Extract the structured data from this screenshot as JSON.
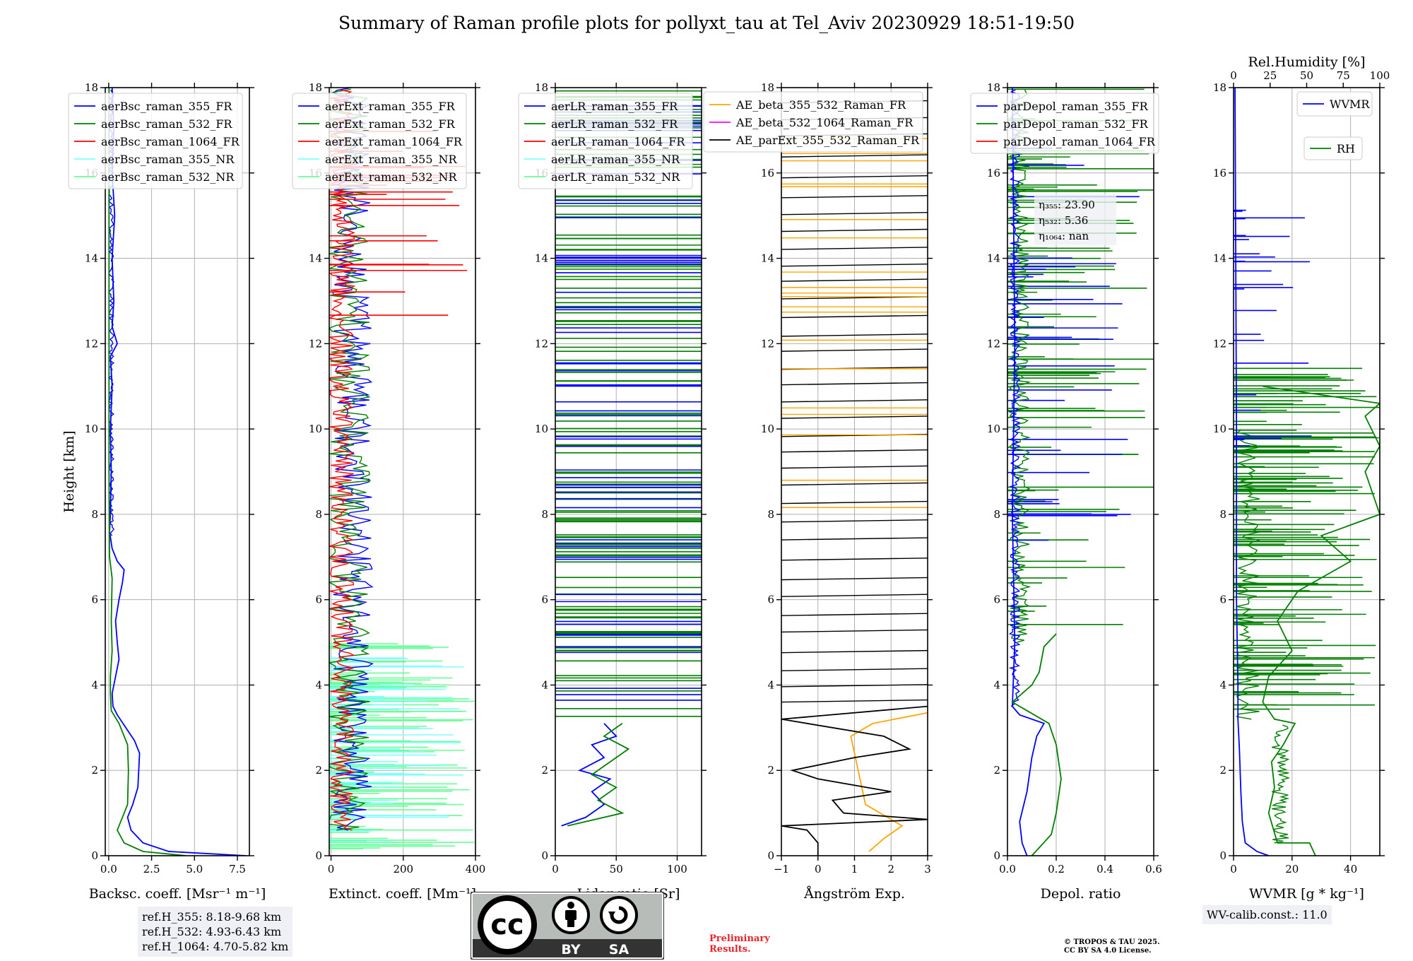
{
  "title": "Summary of Raman profile plots for pollyxt_tau at Tel_Aviv 20230929 18:51-19:50",
  "colors": {
    "blue": "#0000ff",
    "green": "#008000",
    "red": "#ff0000",
    "cyan": "#80ffff",
    "lightgreen": "#66ff99",
    "orange": "#ffa500",
    "magenta": "#ff00ff",
    "black": "#000000"
  },
  "chart_data": [
    {
      "type": "line",
      "id": "bsc",
      "xlabel": "Backsc. coeff. [Msr⁻¹ m⁻¹]",
      "ylabel": "Height [km]",
      "xlim": [
        -0.2,
        8.2
      ],
      "ylim": [
        0,
        18
      ],
      "xticks": [
        "0.0",
        "2.5",
        "5.0",
        "7.5"
      ],
      "xtick_values": [
        0,
        2.5,
        5,
        7.5
      ],
      "yticks": [
        0,
        2,
        4,
        6,
        8,
        10,
        12,
        14,
        16,
        18
      ],
      "grid": true,
      "legend": [
        "aerBsc_raman_355_FR",
        "aerBsc_raman_532_FR",
        "aerBsc_raman_1064_FR",
        "aerBsc_raman_355_NR",
        "aerBsc_raman_532_NR"
      ],
      "legend_colors": [
        "blue",
        "green",
        "red",
        "cyan",
        "lightgreen"
      ],
      "series": [
        {
          "name": "aerBsc_raman_355_FR",
          "color": "blue",
          "points": [
            [
              8.0,
              0.0
            ],
            [
              3.5,
              0.1
            ],
            [
              2.0,
              0.3
            ],
            [
              1.3,
              0.6
            ],
            [
              1.1,
              0.9
            ],
            [
              1.4,
              1.2
            ],
            [
              1.7,
              1.6
            ],
            [
              1.75,
              2.0
            ],
            [
              1.8,
              2.4
            ],
            [
              1.5,
              2.7
            ],
            [
              1.0,
              3.0
            ],
            [
              0.5,
              3.3
            ],
            [
              0.25,
              3.5
            ],
            [
              0.2,
              3.8
            ],
            [
              0.4,
              4.2
            ],
            [
              0.6,
              4.6
            ],
            [
              0.5,
              5.0
            ],
            [
              0.4,
              5.5
            ],
            [
              0.6,
              6.0
            ],
            [
              0.8,
              6.4
            ],
            [
              0.9,
              6.7
            ],
            [
              0.5,
              6.9
            ],
            [
              0.2,
              7.2
            ],
            [
              0.05,
              7.6
            ],
            [
              0.1,
              8.0
            ],
            [
              0.15,
              9.0
            ],
            [
              0.1,
              10.0
            ],
            [
              0.2,
              11.0
            ],
            [
              0.1,
              11.7
            ],
            [
              0.5,
              12.0
            ],
            [
              0.2,
              12.4
            ],
            [
              0.3,
              13.0
            ],
            [
              0.2,
              14.0
            ],
            [
              0.35,
              15.0
            ],
            [
              0.2,
              16.0
            ],
            [
              0.3,
              17.0
            ],
            [
              0.2,
              18.0
            ]
          ]
        },
        {
          "name": "aerBsc_raman_532_FR",
          "color": "green",
          "points": [
            [
              4.5,
              0.0
            ],
            [
              2.0,
              0.1
            ],
            [
              0.9,
              0.3
            ],
            [
              0.5,
              0.6
            ],
            [
              0.8,
              0.9
            ],
            [
              1.1,
              1.2
            ],
            [
              1.15,
              2.0
            ],
            [
              1.1,
              2.6
            ],
            [
              0.6,
              3.1
            ],
            [
              0.15,
              3.4
            ],
            [
              0.1,
              3.8
            ],
            [
              0.1,
              4.2
            ],
            [
              0.2,
              4.8
            ],
            [
              0.15,
              5.5
            ],
            [
              0.2,
              6.5
            ],
            [
              0.05,
              7.0
            ],
            [
              0.02,
              9.0
            ],
            [
              0.02,
              18.0
            ]
          ]
        }
      ]
    },
    {
      "type": "line",
      "id": "ext",
      "xlabel": "Extinct. coeff. [Mm⁻¹]",
      "xlim": [
        -5,
        400
      ],
      "ylim": [
        0,
        18
      ],
      "xticks": [
        "0",
        "200",
        "400"
      ],
      "xtick_values": [
        0,
        200,
        400
      ],
      "yticks": [
        0,
        2,
        4,
        6,
        8,
        10,
        12,
        14,
        16,
        18
      ],
      "grid": true,
      "legend": [
        "aerExt_raman_355_FR",
        "aerExt_raman_532_FR",
        "aerExt_raman_1064_FR",
        "aerExt_raman_355_NR",
        "aerExt_raman_532_NR"
      ],
      "legend_colors": [
        "blue",
        "green",
        "red",
        "cyan",
        "lightgreen"
      ]
    },
    {
      "type": "line",
      "id": "lr",
      "xlabel": "Lidar ratio [Sr]",
      "xlim": [
        0,
        120
      ],
      "ylim": [
        0,
        18
      ],
      "xticks": [
        "0",
        "50",
        "100"
      ],
      "xtick_values": [
        0,
        50,
        100
      ],
      "yticks": [
        0,
        2,
        4,
        6,
        8,
        10,
        12,
        14,
        16,
        18
      ],
      "grid": true,
      "legend": [
        "aerLR_raman_355_FR",
        "aerLR_raman_532_FR",
        "aerLR_raman_1064_FR",
        "aerLR_raman_355_NR",
        "aerLR_raman_532_NR"
      ],
      "legend_colors": [
        "blue",
        "green",
        "red",
        "cyan",
        "lightgreen"
      ],
      "series": [
        {
          "name": "aerLR_raman_355_FR",
          "color": "blue",
          "points": [
            [
              5,
              0.7
            ],
            [
              25,
              0.9
            ],
            [
              40,
              1.2
            ],
            [
              30,
              1.5
            ],
            [
              45,
              1.8
            ],
            [
              20,
              2.0
            ],
            [
              40,
              2.3
            ],
            [
              30,
              2.6
            ],
            [
              50,
              2.8
            ],
            [
              40,
              3.1
            ]
          ]
        },
        {
          "name": "aerLR_raman_532_FR",
          "color": "green",
          "points": [
            [
              10,
              0.7
            ],
            [
              55,
              1.0
            ],
            [
              35,
              1.3
            ],
            [
              50,
              1.6
            ],
            [
              30,
              1.9
            ],
            [
              45,
              2.2
            ],
            [
              60,
              2.5
            ],
            [
              40,
              2.8
            ],
            [
              55,
              3.1
            ]
          ]
        }
      ]
    },
    {
      "type": "line",
      "id": "ae",
      "xlabel": "Ångström Exp.",
      "xlim": [
        -1,
        3
      ],
      "ylim": [
        0,
        18
      ],
      "xticks": [
        "−1",
        "0",
        "1",
        "2",
        "3"
      ],
      "xtick_values": [
        -1,
        0,
        1,
        2,
        3
      ],
      "yticks": [
        0,
        2,
        4,
        6,
        8,
        10,
        12,
        14,
        16,
        18
      ],
      "grid": true,
      "legend": [
        "AE_beta_355_532_Raman_FR",
        "AE_beta_532_1064_Raman_FR",
        "AE_parExt_355_532_Raman_FR"
      ],
      "legend_colors": [
        "orange",
        "magenta",
        "black"
      ],
      "series": [
        {
          "name": "AE_beta_355_532_Raman_FR",
          "color": "orange",
          "points": [
            [
              1.4,
              0.1
            ],
            [
              1.8,
              0.4
            ],
            [
              2.3,
              0.7
            ],
            [
              1.9,
              0.9
            ],
            [
              1.3,
              1.2
            ],
            [
              1.2,
              1.6
            ],
            [
              1.1,
              2.0
            ],
            [
              1.0,
              2.4
            ],
            [
              0.9,
              2.8
            ],
            [
              1.5,
              3.1
            ],
            [
              3.0,
              3.35
            ]
          ]
        },
        {
          "name": "AE_parExt_355_532_Raman_FR",
          "color": "black",
          "points": [
            [
              0,
              0.0
            ],
            [
              0,
              0.3
            ],
            [
              -0.3,
              0.6
            ],
            [
              -1,
              0.7
            ],
            [
              3,
              0.85
            ],
            [
              0.7,
              1.0
            ],
            [
              0.4,
              1.3
            ],
            [
              2.0,
              1.5
            ],
            [
              0,
              1.8
            ],
            [
              -0.7,
              2.0
            ],
            [
              1.0,
              2.3
            ],
            [
              2.5,
              2.5
            ],
            [
              1.8,
              2.8
            ],
            [
              -1,
              3.2
            ],
            [
              3,
              3.5
            ]
          ]
        }
      ]
    },
    {
      "type": "line",
      "id": "dep",
      "xlabel": "Depol. ratio",
      "xlim": [
        0,
        0.6
      ],
      "ylim": [
        0,
        18
      ],
      "xticks": [
        "0.0",
        "0.2",
        "0.4",
        "0.6"
      ],
      "xtick_values": [
        0,
        0.2,
        0.4,
        0.6
      ],
      "yticks": [
        0,
        2,
        4,
        6,
        8,
        10,
        12,
        14,
        16,
        18
      ],
      "grid": true,
      "legend": [
        "parDepol_raman_355_FR",
        "parDepol_raman_532_FR",
        "parDepol_raman_1064_FR"
      ],
      "legend_colors": [
        "blue",
        "green",
        "red"
      ],
      "annotations": [
        "η₃₅₅: 23.90",
        "η₅₃₂: 5.36",
        "η₁₀₆₄: nan"
      ],
      "series": [
        {
          "name": "parDepol_raman_355_FR",
          "color": "blue",
          "points": [
            [
              0.08,
              0.0
            ],
            [
              0.06,
              0.3
            ],
            [
              0.05,
              0.8
            ],
            [
              0.08,
              1.5
            ],
            [
              0.1,
              2.3
            ],
            [
              0.12,
              2.8
            ],
            [
              0.15,
              3.1
            ],
            [
              0.05,
              3.3
            ],
            [
              0.02,
              3.5
            ],
            [
              0.03,
              5.0
            ],
            [
              0.02,
              8.0
            ],
            [
              0.03,
              12.0
            ],
            [
              0.02,
              18.0
            ]
          ]
        },
        {
          "name": "parDepol_raman_532_FR",
          "color": "green",
          "points": [
            [
              0.1,
              0.0
            ],
            [
              0.18,
              0.5
            ],
            [
              0.2,
              1.0
            ],
            [
              0.22,
              1.8
            ],
            [
              0.2,
              2.6
            ],
            [
              0.17,
              3.1
            ],
            [
              0.08,
              3.4
            ],
            [
              0.02,
              3.6
            ],
            [
              0.1,
              4.0
            ],
            [
              0.13,
              4.3
            ],
            [
              0.15,
              4.9
            ],
            [
              0.2,
              5.2
            ]
          ]
        }
      ]
    },
    {
      "type": "line",
      "id": "wv",
      "xlabel": "WVMR [g * kg⁻¹]",
      "x2label": "Rel.Humidity [%]",
      "xlim": [
        0,
        50
      ],
      "x2lim": [
        0,
        100
      ],
      "ylim": [
        0,
        18
      ],
      "xticks": [
        "0",
        "20",
        "40"
      ],
      "xtick_values": [
        0,
        20,
        40
      ],
      "x2ticks": [
        "0",
        "25",
        "50",
        "75",
        "100"
      ],
      "x2tick_values": [
        0,
        25,
        50,
        75,
        100
      ],
      "yticks": [
        0,
        2,
        4,
        6,
        8,
        10,
        12,
        14,
        16,
        18
      ],
      "grid": true,
      "legend": [
        "WVMR",
        "RH"
      ],
      "legend_colors": [
        "blue",
        "green"
      ],
      "series": [
        {
          "name": "WVMR",
          "color": "blue",
          "points": [
            [
              12,
              0.0
            ],
            [
              8,
              0.1
            ],
            [
              4,
              0.3
            ],
            [
              3,
              0.8
            ],
            [
              2.5,
              1.5
            ],
            [
              2,
              2.5
            ],
            [
              1.5,
              3.2
            ],
            [
              1.5,
              4.0
            ],
            [
              1,
              6.0
            ],
            [
              1,
              8.0
            ],
            [
              1,
              10.0
            ],
            [
              0.5,
              18.0
            ]
          ]
        },
        {
          "name": "RH",
          "color": "green",
          "points": [
            [
              28,
              0.0
            ],
            [
              26,
              0.3
            ],
            [
              15,
              0.3
            ],
            [
              12,
              1.0
            ],
            [
              14,
              1.6
            ],
            [
              13,
              2.2
            ],
            [
              17,
              2.6
            ],
            [
              21,
              3.1
            ],
            [
              14,
              3.2
            ],
            [
              10,
              3.6
            ],
            [
              12,
              4.2
            ],
            [
              20,
              4.8
            ],
            [
              15,
              5.5
            ],
            [
              22,
              6.2
            ],
            [
              40,
              6.9
            ],
            [
              30,
              7.5
            ],
            [
              50,
              8.0
            ],
            [
              45,
              9.0
            ],
            [
              50,
              9.6
            ],
            [
              45,
              10.3
            ],
            [
              50,
              10.6
            ],
            [
              10,
              11.0
            ]
          ]
        }
      ]
    }
  ],
  "ref_box": [
    "ref.H_355: 8.18-9.68 km",
    "ref.H_532: 4.93-6.43 km",
    "ref.H_1064: 4.70-5.82 km"
  ],
  "wv_box": "WV-calib.const.: 11.0",
  "preliminary": [
    "Preliminary",
    "Results."
  ],
  "copyright": [
    "© TROPOS & TAU 2025.",
    "CC BY SA 4.0 License."
  ],
  "cc_badge": {
    "cc": "cc",
    "by": "BY",
    "sa": "SA"
  }
}
